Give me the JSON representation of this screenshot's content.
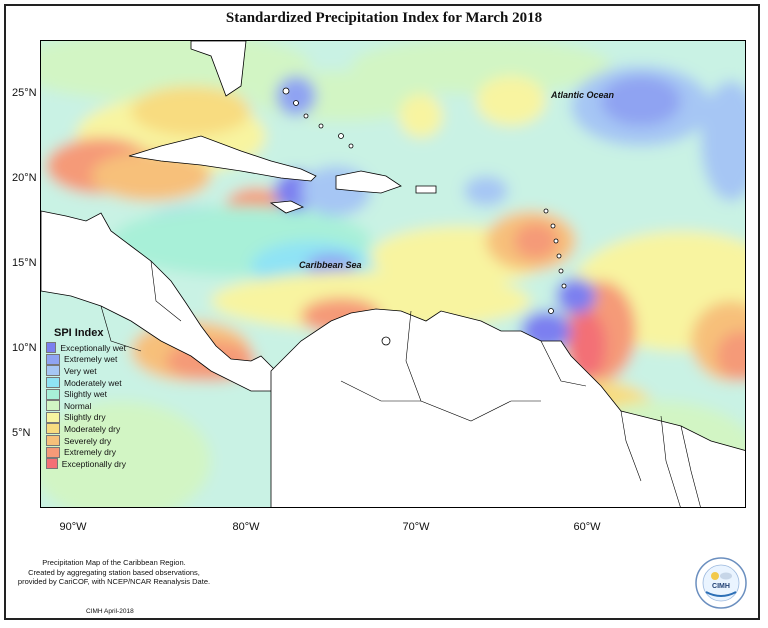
{
  "title": "Standardized Precipitation Index for March 2018",
  "map": {
    "latitude_labels": [
      "25°N",
      "20°N",
      "15°N",
      "10°N",
      "5°N"
    ],
    "longitude_labels": [
      "90°W",
      "80°W",
      "70°W",
      "60°W"
    ],
    "place_labels": {
      "atlantic": "Atlantic Ocean",
      "caribbean": "Caribbean Sea"
    }
  },
  "legend": {
    "title": "SPI Index",
    "items": [
      {
        "label": "Exceptionally wet",
        "color": "#7b7ff0"
      },
      {
        "label": "Extremely wet",
        "color": "#8fa3f2"
      },
      {
        "label": "Very wet",
        "color": "#a6c6f4"
      },
      {
        "label": "Moderately wet",
        "color": "#8fe3f5"
      },
      {
        "label": "Slightly wet",
        "color": "#a8f0d8"
      },
      {
        "label": "Normal",
        "color": "#d2f5c4"
      },
      {
        "label": "Slightly dry",
        "color": "#f8f4a0"
      },
      {
        "label": "Moderately dry",
        "color": "#f8dc80"
      },
      {
        "label": "Severely dry",
        "color": "#f7c07a"
      },
      {
        "label": "Extremely dry",
        "color": "#f59a78"
      },
      {
        "label": "Exceptionally dry",
        "color": "#f36f76"
      }
    ]
  },
  "footer": {
    "line1": "Precipitation Map of the Caribbean Region.",
    "line2": "Created by aggregating station based observations,",
    "line3": "provided by CariCOF, with NCEP/NCAR Reanalysis Date.",
    "credit": "CIMH April-2018"
  },
  "logo": {
    "text": "CIMH"
  }
}
